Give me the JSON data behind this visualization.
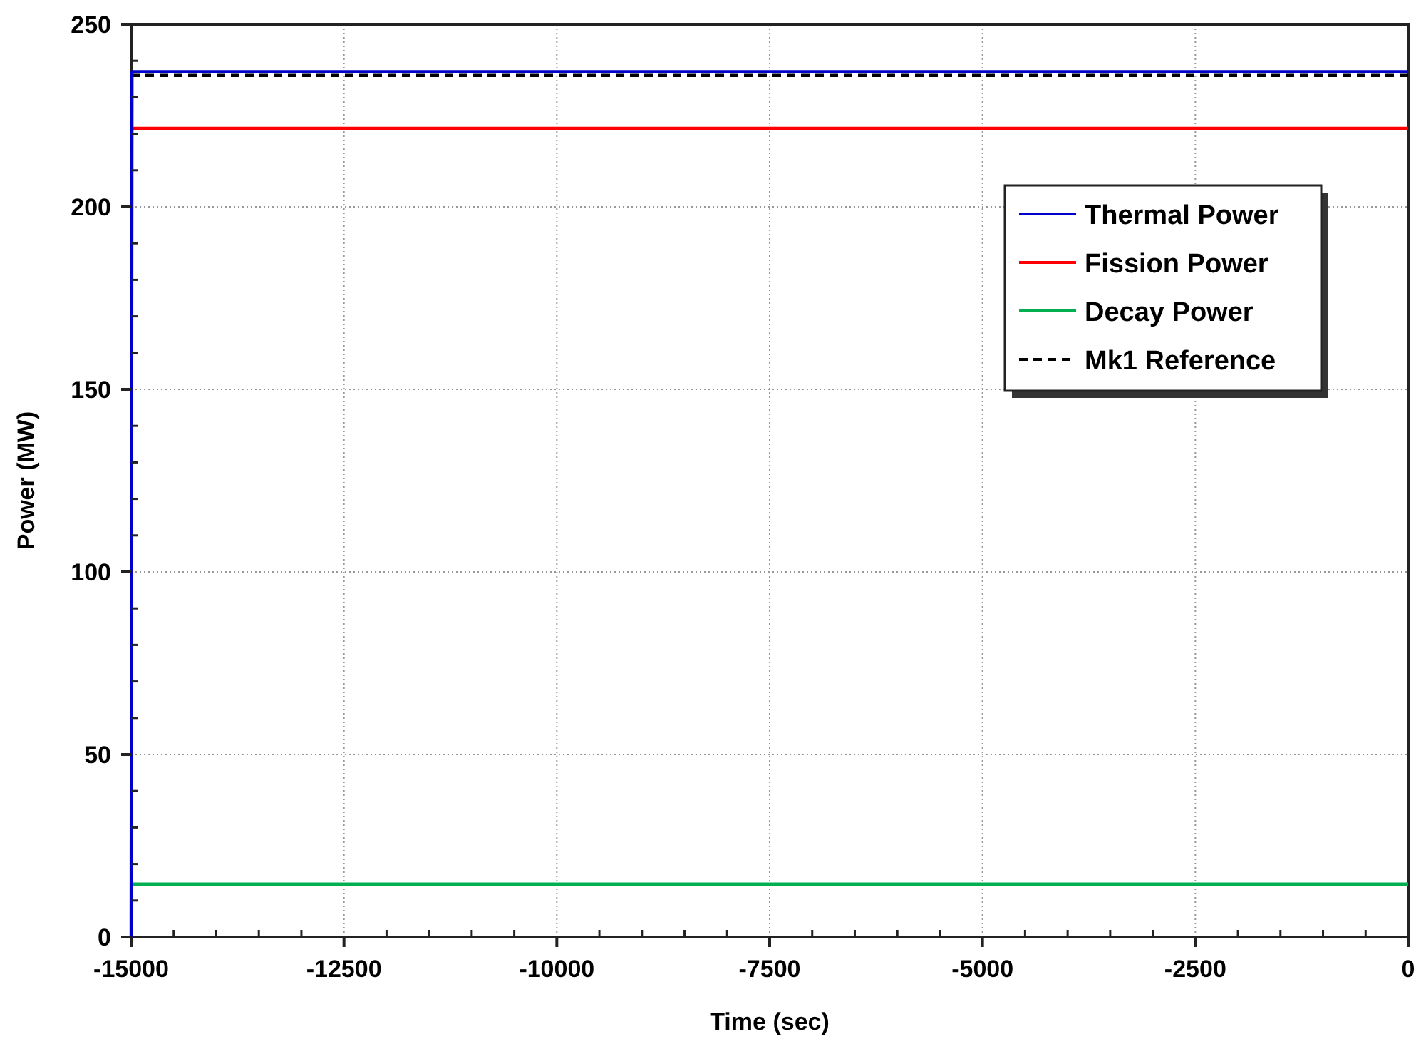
{
  "chart_data": {
    "type": "line",
    "xlabel": "Time (sec)",
    "ylabel": "Power (MW)",
    "xlim": [
      -15000,
      0
    ],
    "xticks": [
      -15000,
      -12500,
      -10000,
      -7500,
      -5000,
      -2500,
      0
    ],
    "ylim": [
      0,
      250
    ],
    "yticks": [
      0,
      50,
      100,
      150,
      200,
      250
    ],
    "grid": true,
    "legend": "top right",
    "marker": "none",
    "series": [
      {
        "name": "Thermal Power",
        "color": "#0000cc",
        "x": [
          -15000,
          -14990,
          0
        ],
        "values": [
          0,
          237,
          237
        ]
      },
      {
        "name": "Fission Power",
        "color": "#ff0000",
        "x": [
          -15000,
          0
        ],
        "values": [
          221.5,
          221.5
        ]
      },
      {
        "name": "Decay Power",
        "color": "#00b050",
        "x": [
          -15000,
          0
        ],
        "values": [
          14.5,
          14.5
        ]
      },
      {
        "name": "Mk1 Reference",
        "color": "#000000",
        "line_style": "dashed",
        "x": [
          -15000,
          0
        ],
        "values": [
          236,
          236
        ]
      }
    ]
  }
}
